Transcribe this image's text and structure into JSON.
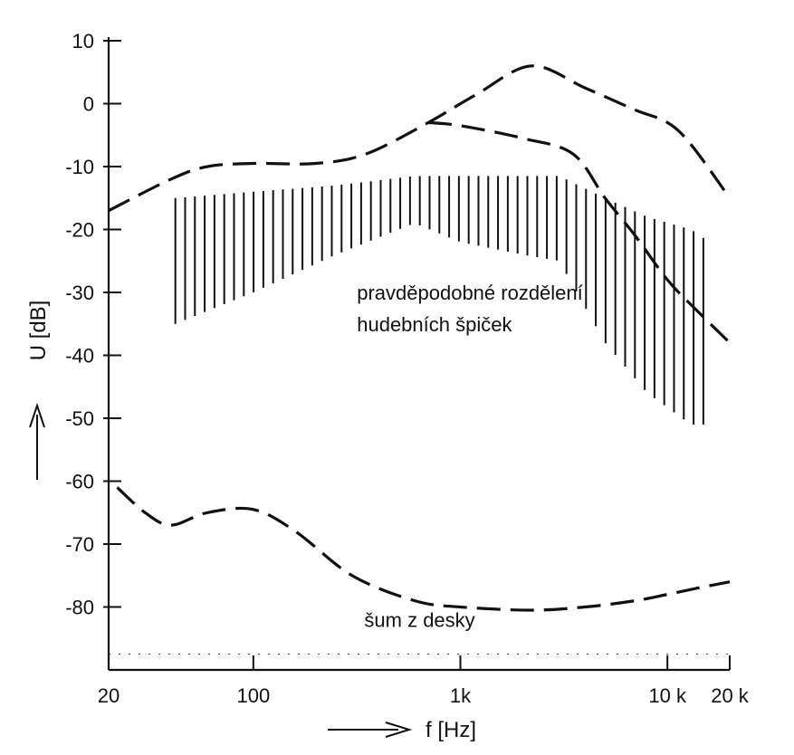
{
  "chart_data": {
    "type": "line",
    "title": "",
    "xlabel": "f [Hz]",
    "ylabel": "U [dB]",
    "xscale": "log",
    "xlim": [
      20,
      20000
    ],
    "ylim": [
      -90,
      10
    ],
    "x_ticks": [
      {
        "value": 20,
        "label": "20"
      },
      {
        "value": 100,
        "label": "100"
      },
      {
        "value": 1000,
        "label": "1k"
      },
      {
        "value": 10000,
        "label": "10 k"
      },
      {
        "value": 20000,
        "label": "20 k"
      }
    ],
    "y_ticks": [
      {
        "value": 10,
        "label": "10"
      },
      {
        "value": 0,
        "label": "0"
      },
      {
        "value": -10,
        "label": "-10"
      },
      {
        "value": -20,
        "label": "-20"
      },
      {
        "value": -30,
        "label": "-30"
      },
      {
        "value": -40,
        "label": "-40"
      },
      {
        "value": -50,
        "label": "-50"
      },
      {
        "value": -60,
        "label": "-60"
      },
      {
        "value": -70,
        "label": "-70"
      },
      {
        "value": -80,
        "label": "-80"
      }
    ],
    "grid": false,
    "series": [
      {
        "style": "dashed",
        "x": [
          20,
          40,
          60,
          100,
          200,
          350,
          700,
          1200,
          2200,
          4000,
          7000,
          10000,
          13000,
          20000
        ],
        "y": [
          -17,
          -12,
          -10,
          -9.5,
          -9.5,
          -8,
          -3,
          1.5,
          6,
          2.5,
          -1,
          -3,
          -6.5,
          -15
        ]
      },
      {
        "style": "dashed",
        "x": [
          700,
          1000,
          2000,
          3500,
          5000,
          7000,
          10000,
          14000,
          20000
        ],
        "y": [
          -3,
          -3.5,
          -5.5,
          -8,
          -15,
          -21,
          -28,
          -33,
          -38
        ]
      },
      {
        "style": "dashed",
        "x": [
          22,
          30,
          40,
          60,
          100,
          160,
          300,
          600,
          1000,
          2200,
          4000,
          7000,
          10000,
          14000,
          20000
        ],
        "y": [
          -61,
          -65,
          -67,
          -65,
          -64.5,
          -68,
          -75,
          -79,
          -80,
          -80.5,
          -80,
          -79,
          -78,
          -77,
          -76
        ]
      }
    ],
    "band": {
      "label": "pravděpodobné rozdělení hudebních špiček",
      "x": [
        42,
        100,
        250,
        600,
        1000,
        2000,
        3000,
        5000,
        8000,
        13000,
        16000
      ],
      "y_top": [
        -15,
        -14,
        -13,
        -11.5,
        -11.5,
        -11.5,
        -11.5,
        -15,
        -18,
        -20,
        -22
      ],
      "y_bottom": [
        -35,
        -30,
        -24,
        -19,
        -22,
        -24,
        -25,
        -38,
        -46,
        -51,
        -51
      ]
    },
    "annotations": [
      {
        "text": "pravděpodobné rozdělení",
        "x": 350,
        "y": -30
      },
      {
        "text": "hudebních špiček",
        "x": 350,
        "y": -35
      },
      {
        "text": "šum z desky",
        "x": 380,
        "y": -82
      }
    ]
  }
}
